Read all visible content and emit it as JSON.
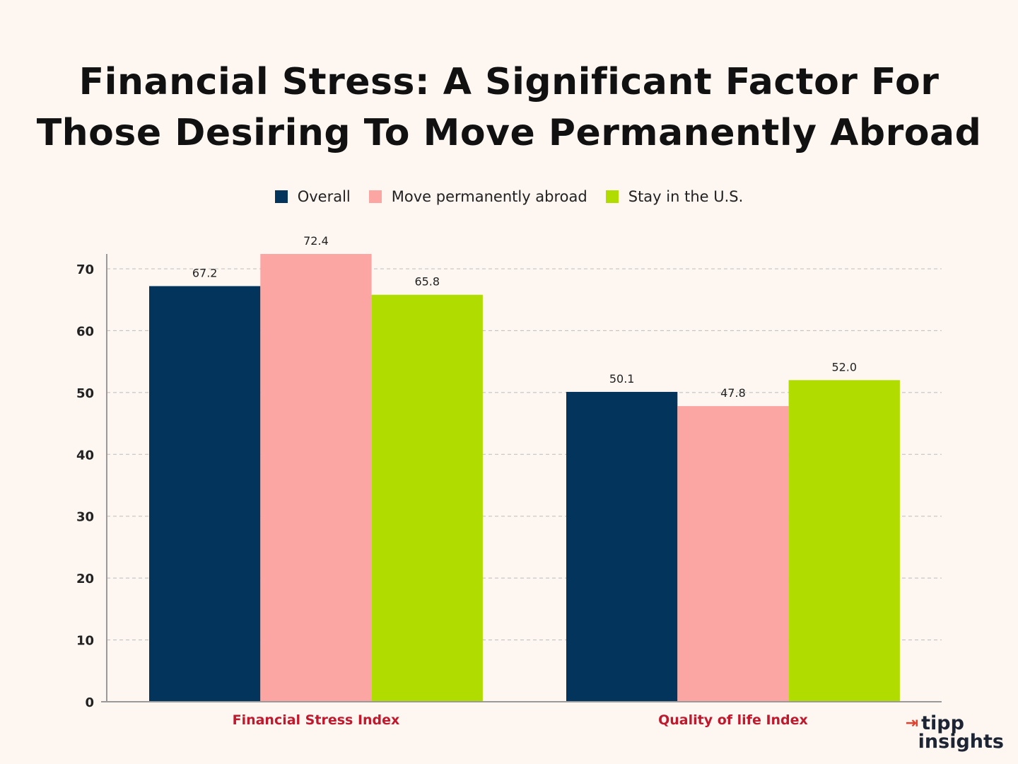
{
  "title": {
    "line1": "Financial Stress: A Significant Factor For",
    "line2": "Those Desiring To Move Permanently Abroad"
  },
  "logo": {
    "word1": "tipp",
    "word2": "insights",
    "arrow_icon": "arrow-right-icon"
  },
  "colors": {
    "background": "#fdf6f1",
    "overall": "#03355c",
    "abroad": "#fba6a3",
    "stay": "#b0dc00",
    "category_label": "#c0182d",
    "logo_accent": "#e0412f"
  },
  "chart_data": {
    "type": "bar",
    "title": "Financial Stress: A Significant Factor For Those Desiring To Move Permanently Abroad",
    "categories": [
      "Financial Stress Index",
      "Quality of life Index"
    ],
    "series": [
      {
        "name": "Overall",
        "values": [
          67.2,
          50.1
        ],
        "labels": [
          "67.2",
          "50.1"
        ],
        "color": "#03355c"
      },
      {
        "name": "Move permanently abroad",
        "values": [
          72.4,
          47.8
        ],
        "labels": [
          "72.4",
          "47.8"
        ],
        "color": "#fba6a3"
      },
      {
        "name": "Stay in the U.S.",
        "values": [
          65.8,
          52.0
        ],
        "labels": [
          "65.8",
          "52.0"
        ],
        "color": "#b0dc00"
      }
    ],
    "ylim": [
      0,
      72.4
    ],
    "yticks": [
      0,
      10,
      20,
      30,
      40,
      50,
      60,
      70
    ],
    "xlabel": "",
    "ylabel": "",
    "grid": true,
    "legend": "top-center"
  }
}
